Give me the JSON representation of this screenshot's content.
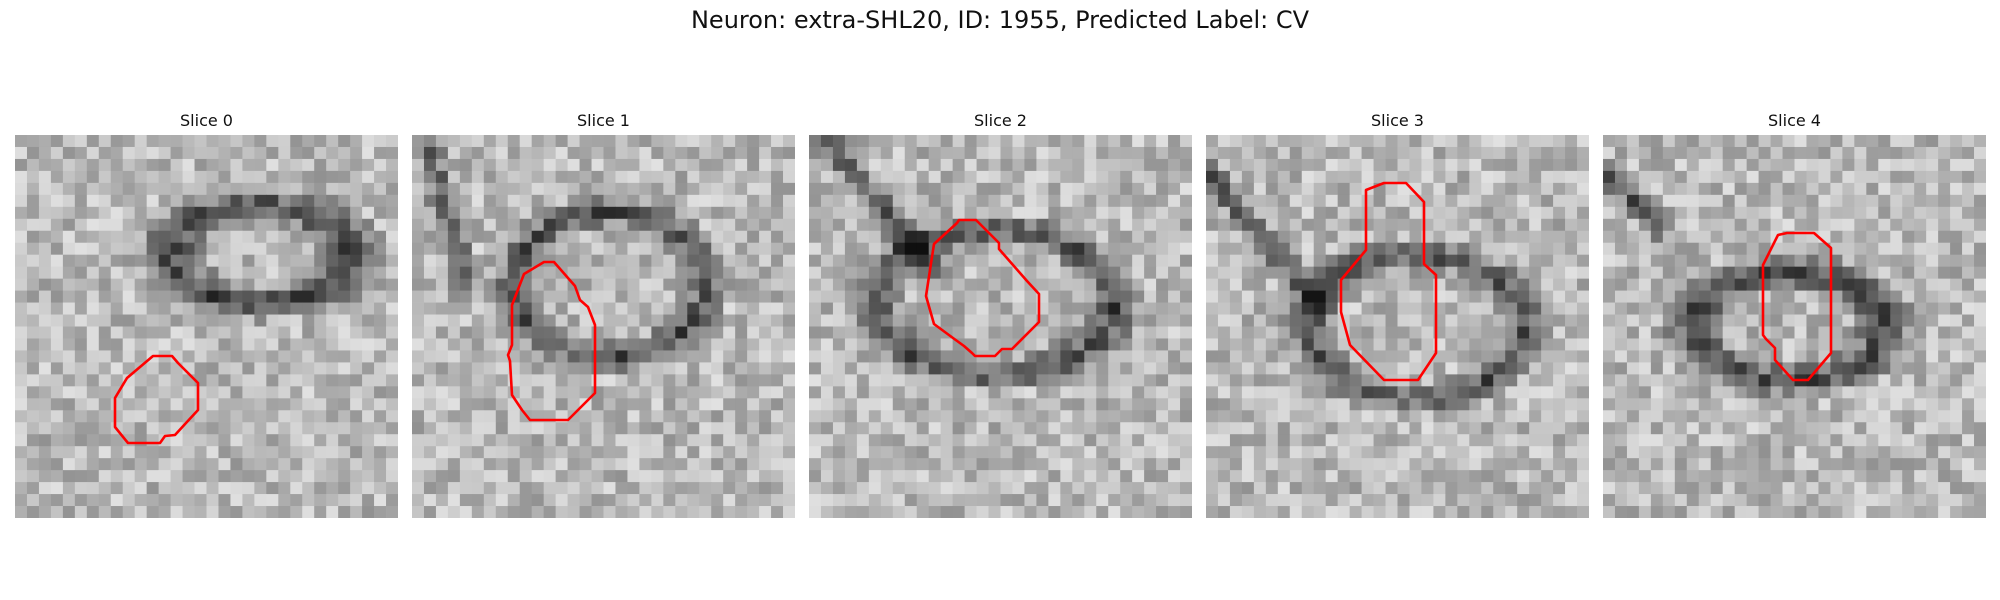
{
  "figure": {
    "title": "Neuron: extra-SHL20, ID: 1955, Predicted Label: CV"
  },
  "colors": {
    "contour": "#ff0000",
    "background": "#ffffff"
  },
  "panels": [
    {
      "title": "Slice 0",
      "seed": 11
    },
    {
      "title": "Slice 1",
      "seed": 23
    },
    {
      "title": "Slice 2",
      "seed": 37
    },
    {
      "title": "Slice 3",
      "seed": 51
    },
    {
      "title": "Slice 4",
      "seed": 67
    }
  ]
}
